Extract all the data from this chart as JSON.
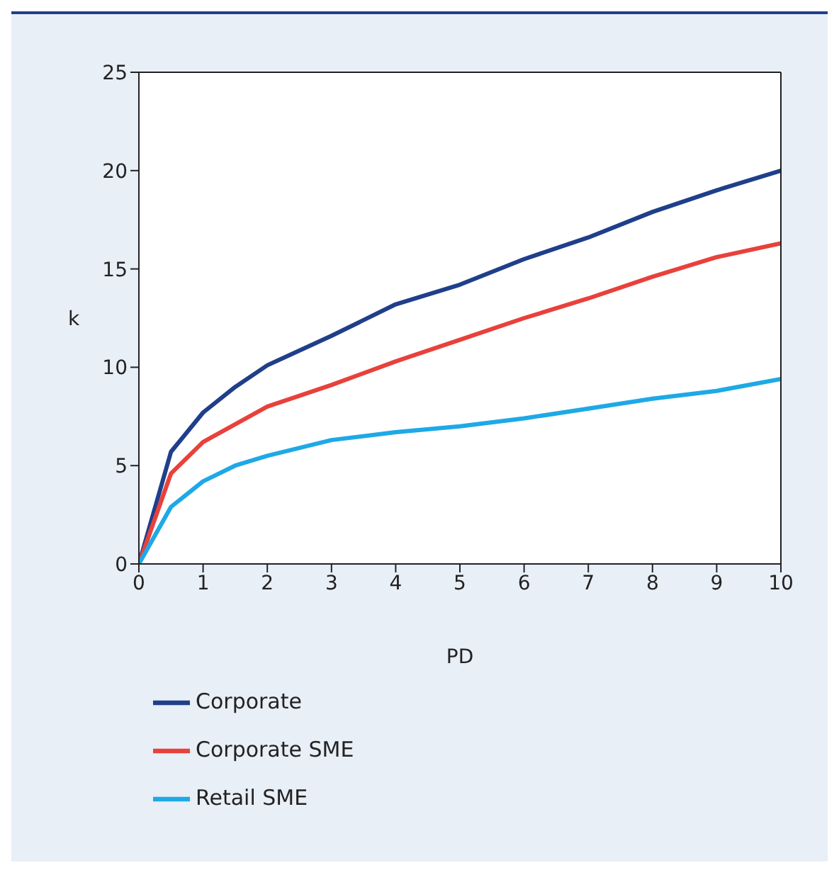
{
  "chart_data": {
    "type": "line",
    "xlabel": "PD",
    "ylabel": "k",
    "x": [
      0,
      0.5,
      1,
      1.5,
      2,
      3,
      4,
      5,
      6,
      7,
      8,
      9,
      10
    ],
    "series": [
      {
        "name": "Corporate",
        "color": "#1f3f8a",
        "values": [
          0,
          5.7,
          7.7,
          9.0,
          10.1,
          11.6,
          13.2,
          14.2,
          15.5,
          16.6,
          17.9,
          19.0,
          20.0
        ]
      },
      {
        "name": "Corporate SME",
        "color": "#e8413c",
        "values": [
          0,
          4.6,
          6.2,
          7.1,
          8.0,
          9.1,
          10.3,
          11.4,
          12.5,
          13.5,
          14.6,
          15.6,
          16.3
        ]
      },
      {
        "name": "Retail SME",
        "color": "#1ea9e6",
        "values": [
          0,
          2.9,
          4.2,
          5.0,
          5.5,
          6.3,
          6.7,
          7.0,
          7.4,
          7.9,
          8.4,
          8.8,
          9.4
        ]
      }
    ],
    "xlim": [
      0,
      10
    ],
    "xticks": [
      0,
      1,
      2,
      3,
      4,
      5,
      6,
      7,
      8,
      9,
      10
    ],
    "ylim": [
      0,
      25
    ],
    "yticks": [
      0,
      5,
      10,
      15,
      20,
      25
    ],
    "grid": false,
    "legend": "bottom",
    "marker": "none",
    "line_style": "solid"
  }
}
